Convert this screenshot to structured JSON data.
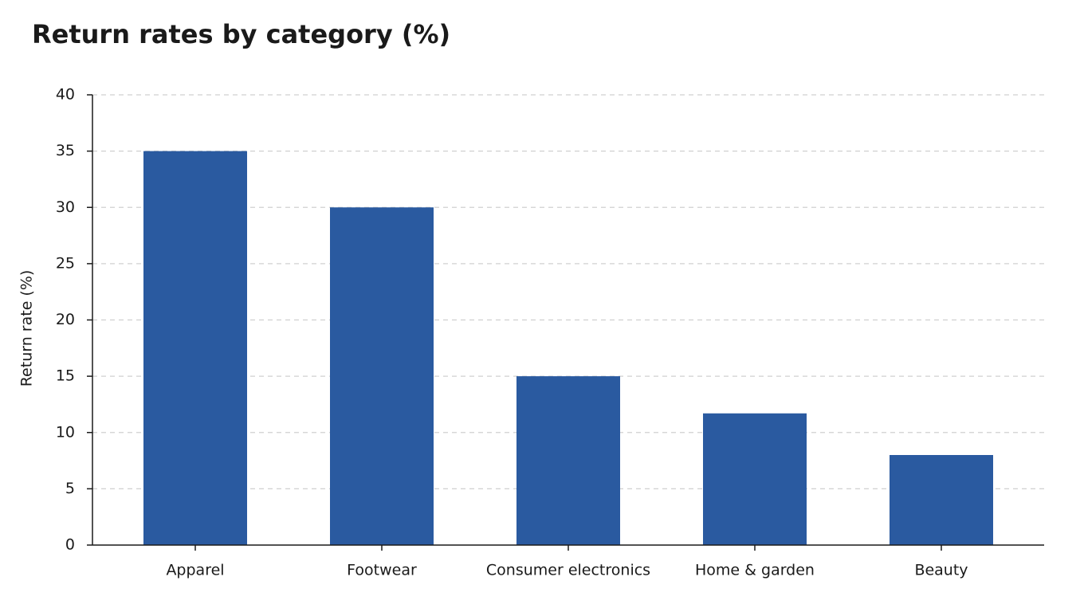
{
  "chart_data": {
    "type": "bar",
    "title": "Return rates by category (%)",
    "y_label": "Return rate (%)",
    "categories": [
      "Apparel",
      "Footwear",
      "Consumer electronics",
      "Home & garden",
      "Beauty"
    ],
    "values": [
      35,
      30,
      15,
      11.7,
      8
    ],
    "color": "#2a5aa0",
    "ylim": [
      0,
      40
    ],
    "yticks": [
      0,
      5,
      10,
      15,
      20,
      25,
      30,
      35,
      40
    ],
    "grid": true
  }
}
